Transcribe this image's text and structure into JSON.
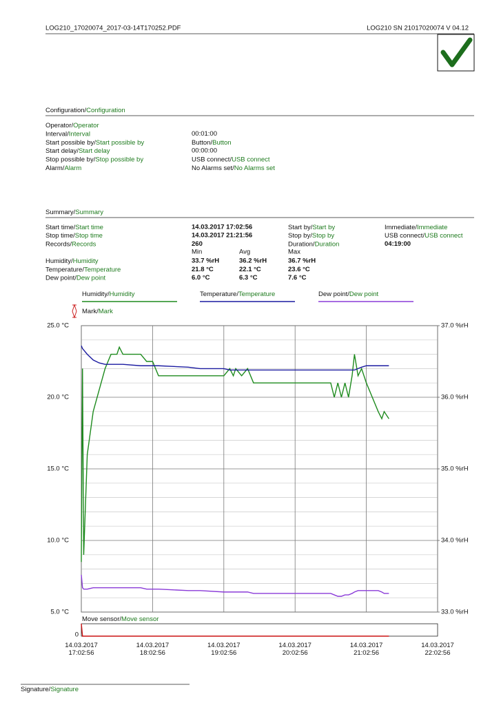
{
  "header": {
    "file": "LOG210_17020074_2017-03-14T170252.PDF",
    "device": "LOG210  SN 21017020074  V 04.12"
  },
  "configuration": {
    "title": [
      "Configuration/",
      "Configuration"
    ],
    "rows": [
      {
        "label": [
          "Operator/",
          "Operator"
        ]
      },
      {
        "label": [
          "Interval/",
          "Interval"
        ],
        "value": "00:01:00"
      },
      {
        "label": [
          "Start possible by/",
          "Start possible by"
        ],
        "value": [
          "Button/",
          "Button"
        ]
      },
      {
        "label": [
          "Start delay/",
          "Start delay"
        ],
        "value": "00:00:00"
      },
      {
        "label": [
          "Stop possible by/",
          "Stop possible by"
        ],
        "value": [
          "USB connect/",
          "USB connect"
        ]
      },
      {
        "label": [
          "Alarm/",
          "Alarm"
        ],
        "value": [
          "No Alarms set/",
          "No Alarms set"
        ]
      }
    ]
  },
  "summary": {
    "title": [
      "Summary/",
      "Summary"
    ],
    "rows": [
      {
        "label": [
          "Start time/",
          "Start time"
        ],
        "value": "14.03.2017 17:02:56",
        "label2": [
          "Start by/",
          "Start by"
        ],
        "value2": [
          "Immediate/",
          "Immediate"
        ]
      },
      {
        "label": [
          "Stop time/",
          "Stop time"
        ],
        "value": "14.03.2017 21:21:56",
        "label2": [
          "Stop by/",
          "Stop by"
        ],
        "value2": [
          "USB connect/",
          "USB connect"
        ]
      },
      {
        "label": [
          "Records/",
          "Records"
        ],
        "value": "260",
        "label2": [
          "Duration/",
          "Duration"
        ],
        "value2": "04:19:00"
      }
    ],
    "stats": {
      "columns": [
        "Min",
        "Avg",
        "Max"
      ],
      "rows": [
        {
          "label": [
            "Humidity/",
            "Humidity"
          ],
          "color": "#1d7a1d",
          "values": [
            "33.7 %rH",
            "36.2 %rH",
            "36.7 %rH"
          ]
        },
        {
          "label": [
            "Temperature/",
            "Temperature"
          ],
          "color": "#1a1a96",
          "values": [
            "21.8 °C",
            "22.1 °C",
            "23.6 °C"
          ]
        },
        {
          "label": [
            "Dew point/",
            "Dew point"
          ],
          "color": "#8a3ad8",
          "values": [
            "6.0 °C",
            "6.3 °C",
            "7.6 °C"
          ]
        }
      ]
    }
  },
  "chart_data": [
    {
      "type": "line",
      "mark_label": [
        "Mark/",
        "Mark"
      ],
      "x": [
        "14.03.2017 17:02:56",
        "14.03.2017 17:03:56",
        "14.03.2017 17:04:56",
        "14.03.2017 17:07:56",
        "14.03.2017 17:12:56",
        "14.03.2017 17:17:56",
        "14.03.2017 17:22:56",
        "14.03.2017 17:27:56",
        "14.03.2017 17:32:56",
        "14.03.2017 17:34:56",
        "14.03.2017 17:37:56",
        "14.03.2017 17:52:56",
        "14.03.2017 17:57:56",
        "14.03.2017 18:02:56",
        "14.03.2017 18:07:56",
        "14.03.2017 18:32:56",
        "14.03.2017 18:42:56",
        "14.03.2017 19:02:56",
        "14.03.2017 19:07:56",
        "14.03.2017 19:10:56",
        "14.03.2017 19:12:56",
        "14.03.2017 19:17:56",
        "14.03.2017 19:22:56",
        "14.03.2017 19:27:56",
        "14.03.2017 20:02:56",
        "14.03.2017 20:32:56",
        "14.03.2017 20:35:56",
        "14.03.2017 20:38:56",
        "14.03.2017 20:41:56",
        "14.03.2017 20:44:56",
        "14.03.2017 20:47:56",
        "14.03.2017 20:50:56",
        "14.03.2017 20:52:56",
        "14.03.2017 20:55:56",
        "14.03.2017 20:58:56",
        "14.03.2017 21:02:56",
        "14.03.2017 21:07:56",
        "14.03.2017 21:12:56",
        "14.03.2017 21:15:56",
        "14.03.2017 21:17:56",
        "14.03.2017 21:21:56"
      ],
      "series": [
        {
          "name": "Humidity/",
          "name_translation": "Humidity",
          "color": "#1d8a1d",
          "axis": "y2",
          "values": [
            33.7,
            36.4,
            33.8,
            35.2,
            35.8,
            36.1,
            36.4,
            36.6,
            36.6,
            36.7,
            36.6,
            36.6,
            36.5,
            36.5,
            36.3,
            36.3,
            36.3,
            36.3,
            36.4,
            36.3,
            36.4,
            36.3,
            36.4,
            36.2,
            36.2,
            36.2,
            36.0,
            36.2,
            36.0,
            36.2,
            36.0,
            36.3,
            36.6,
            36.3,
            36.4,
            36.2,
            36.0,
            35.8,
            35.7,
            35.8,
            35.7
          ]
        },
        {
          "name": "Temperature/",
          "name_translation": "Temperature",
          "color": "#1a1aa0",
          "values": [
            23.6,
            23.4,
            23.3,
            23.0,
            22.6,
            22.4,
            22.3,
            22.3,
            22.3,
            22.3,
            22.3,
            22.2,
            22.2,
            22.2,
            22.2,
            22.1,
            22.0,
            22.0,
            21.9,
            21.9,
            21.9,
            21.9,
            21.9,
            21.9,
            21.9,
            21.9,
            21.9,
            21.9,
            21.9,
            21.9,
            21.9,
            21.9,
            21.9,
            22.0,
            22.1,
            22.2,
            22.2,
            22.2,
            22.2,
            22.2,
            22.2
          ]
        },
        {
          "name": "Dew point/",
          "name_translation": "Dew point",
          "color": "#8a3ad8",
          "values": [
            7.6,
            6.7,
            6.6,
            6.6,
            6.7,
            6.7,
            6.7,
            6.7,
            6.7,
            6.7,
            6.7,
            6.7,
            6.6,
            6.6,
            6.6,
            6.5,
            6.5,
            6.4,
            6.4,
            6.4,
            6.4,
            6.4,
            6.4,
            6.3,
            6.3,
            6.3,
            6.2,
            6.1,
            6.1,
            6.2,
            6.2,
            6.3,
            6.4,
            6.5,
            6.5,
            6.5,
            6.5,
            6.5,
            6.4,
            6.3,
            6.3
          ]
        }
      ],
      "xlim": [
        "14.03.2017 17:02:56",
        "14.03.2017 22:02:56"
      ],
      "xticks": [
        "14.03.2017 17:02:56",
        "14.03.2017 18:02:56",
        "14.03.2017 19:02:56",
        "14.03.2017 20:02:56",
        "14.03.2017 21:02:56",
        "14.03.2017 22:02:56"
      ],
      "ylim": [
        5,
        25
      ],
      "yticks": [
        {
          "value": 5,
          "label": "5.0 °C"
        },
        {
          "value": 10,
          "label": "10.0 °C"
        },
        {
          "value": 15,
          "label": "15.0 °C"
        },
        {
          "value": 20,
          "label": "20.0 °C"
        },
        {
          "value": 25,
          "label": "25.0 °C"
        }
      ],
      "y_minor_ticks": [
        6,
        7,
        8,
        9,
        11,
        12,
        13,
        14,
        16,
        17,
        18,
        19,
        21,
        22,
        23,
        24
      ],
      "y2lim": [
        33,
        37
      ],
      "y2ticks": [
        {
          "value": 33,
          "label": "33.0 %rH"
        },
        {
          "value": 34,
          "label": "34.0 %rH"
        },
        {
          "value": 35,
          "label": "35.0 %rH"
        },
        {
          "value": 36,
          "label": "36.0 %rH"
        },
        {
          "value": 37,
          "label": "37.0 %rH"
        }
      ],
      "grid": true
    },
    {
      "type": "line",
      "title": [
        "Move sensor/",
        "Move sensor"
      ],
      "x": [
        "14.03.2017 17:02:56",
        "14.03.2017 17:03:56",
        "14.03.2017 21:21:56"
      ],
      "values": [
        1,
        0,
        0
      ],
      "color": "#cc1111",
      "xlim": [
        "14.03.2017 17:02:56",
        "14.03.2017 22:02:56"
      ],
      "ylim": [
        0,
        1
      ],
      "yticks": [
        0
      ]
    }
  ],
  "footer": {
    "signature": [
      "Signature/",
      "Signature"
    ]
  }
}
